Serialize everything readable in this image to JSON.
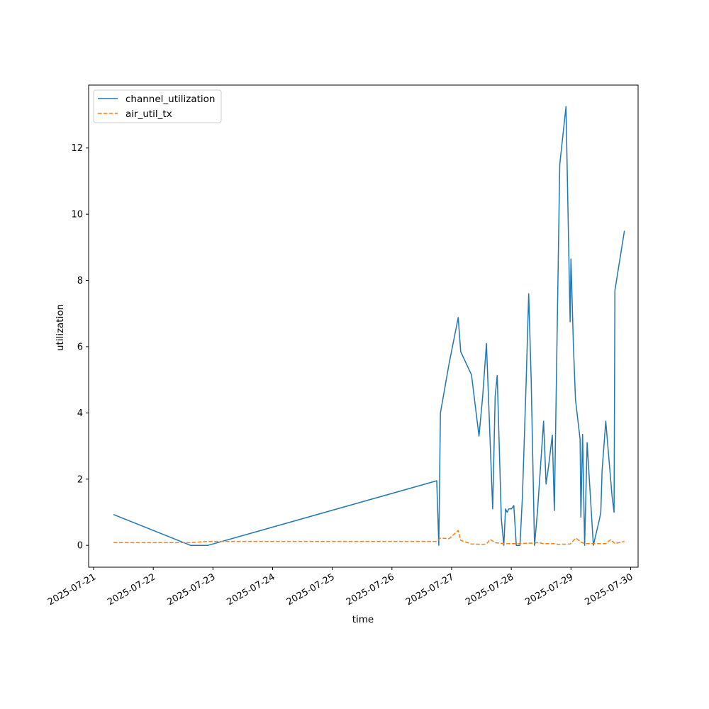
{
  "chart_data": {
    "type": "line",
    "title": "",
    "xlabel": "time",
    "ylabel": "utilization",
    "x_ticks": [
      "2025-07-21",
      "2025-07-22",
      "2025-07-23",
      "2025-07-24",
      "2025-07-25",
      "2025-07-26",
      "2025-07-27",
      "2025-07-28",
      "2025-07-29",
      "2025-07-30"
    ],
    "y_ticks": [
      0,
      2,
      4,
      6,
      8,
      10,
      12
    ],
    "xlim": [
      "2025-07-20 22:00",
      "2025-07-30 03:00"
    ],
    "ylim": [
      -0.66,
      13.9
    ],
    "grid": false,
    "legend_position": "top-left",
    "series": [
      {
        "name": "channel_utilization",
        "color": "#1f77b4",
        "style": "solid",
        "points": [
          [
            "2025-07-21 08:00",
            0.93
          ],
          [
            "2025-07-22 15:00",
            0.0
          ],
          [
            "2025-07-22 22:00",
            0.0
          ],
          [
            "2025-07-26 18:00",
            1.95
          ],
          [
            "2025-07-26 18:50",
            0.0
          ],
          [
            "2025-07-26 19:30",
            4.0
          ],
          [
            "2025-07-26 23:00",
            5.5
          ],
          [
            "2025-07-27 02:40",
            6.88
          ],
          [
            "2025-07-27 03:40",
            5.85
          ],
          [
            "2025-07-27 08:00",
            5.15
          ],
          [
            "2025-07-27 11:00",
            3.3
          ],
          [
            "2025-07-27 12:30",
            4.5
          ],
          [
            "2025-07-27 14:00",
            6.1
          ],
          [
            "2025-07-27 16:30",
            1.1
          ],
          [
            "2025-07-27 17:30",
            4.5
          ],
          [
            "2025-07-27 18:20",
            5.13
          ],
          [
            "2025-07-27 20:00",
            0.8
          ],
          [
            "2025-07-27 21:00",
            0.0
          ],
          [
            "2025-07-27 21:40",
            1.1
          ],
          [
            "2025-07-27 22:20",
            1.0
          ],
          [
            "2025-07-27 23:00",
            1.1
          ],
          [
            "2025-07-28 00:00",
            1.1
          ],
          [
            "2025-07-28 01:00",
            1.2
          ],
          [
            "2025-07-28 02:00",
            0.0
          ],
          [
            "2025-07-28 03:30",
            0.0
          ],
          [
            "2025-07-28 04:30",
            1.5
          ],
          [
            "2025-07-28 06:00",
            5.0
          ],
          [
            "2025-07-28 07:00",
            7.6
          ],
          [
            "2025-07-28 08:00",
            5.0
          ],
          [
            "2025-07-28 09:20",
            0.0
          ],
          [
            "2025-07-28 10:30",
            1.0
          ],
          [
            "2025-07-28 13:00",
            3.75
          ],
          [
            "2025-07-28 14:00",
            1.85
          ],
          [
            "2025-07-28 15:00",
            2.4
          ],
          [
            "2025-07-28 16:30",
            3.33
          ],
          [
            "2025-07-28 17:20",
            1.05
          ],
          [
            "2025-07-28 19:30",
            11.5
          ],
          [
            "2025-07-28 22:00",
            13.25
          ],
          [
            "2025-07-28 23:40",
            6.75
          ],
          [
            "2025-07-29 00:00",
            8.65
          ],
          [
            "2025-07-29 01:00",
            6.0
          ],
          [
            "2025-07-29 01:50",
            4.4
          ],
          [
            "2025-07-29 03:40",
            3.2
          ],
          [
            "2025-07-29 04:00",
            0.85
          ],
          [
            "2025-07-29 04:40",
            3.35
          ],
          [
            "2025-07-29 05:30",
            0.0
          ],
          [
            "2025-07-29 06:30",
            3.1
          ],
          [
            "2025-07-29 09:00",
            0.0
          ],
          [
            "2025-07-29 11:30",
            0.8
          ],
          [
            "2025-07-29 12:00",
            1.0
          ],
          [
            "2025-07-29 12:30",
            2.25
          ],
          [
            "2025-07-29 14:00",
            3.75
          ],
          [
            "2025-07-29 16:30",
            1.5
          ],
          [
            "2025-07-29 17:20",
            1.0
          ],
          [
            "2025-07-29 17:40",
            7.7
          ],
          [
            "2025-07-29 21:30",
            9.5
          ]
        ]
      },
      {
        "name": "air_util_tx",
        "color": "#ff7f0e",
        "style": "dashed",
        "points": [
          [
            "2025-07-21 08:00",
            0.08
          ],
          [
            "2025-07-22 15:00",
            0.08
          ],
          [
            "2025-07-22 22:00",
            0.12
          ],
          [
            "2025-07-26 18:00",
            0.12
          ],
          [
            "2025-07-26 19:30",
            0.22
          ],
          [
            "2025-07-26 23:00",
            0.2
          ],
          [
            "2025-07-27 02:40",
            0.45
          ],
          [
            "2025-07-27 03:40",
            0.15
          ],
          [
            "2025-07-27 08:00",
            0.04
          ],
          [
            "2025-07-27 12:30",
            0.03
          ],
          [
            "2025-07-27 14:00",
            0.04
          ],
          [
            "2025-07-27 15:30",
            0.18
          ],
          [
            "2025-07-27 17:30",
            0.08
          ],
          [
            "2025-07-27 21:00",
            0.05
          ],
          [
            "2025-07-28 02:00",
            0.05
          ],
          [
            "2025-07-28 05:00",
            0.06
          ],
          [
            "2025-07-28 09:20",
            0.07
          ],
          [
            "2025-07-28 11:00",
            0.08
          ],
          [
            "2025-07-28 13:00",
            0.05
          ],
          [
            "2025-07-28 17:00",
            0.05
          ],
          [
            "2025-07-28 19:00",
            0.03
          ],
          [
            "2025-07-28 23:40",
            0.04
          ],
          [
            "2025-07-29 02:00",
            0.22
          ],
          [
            "2025-07-29 04:00",
            0.1
          ],
          [
            "2025-07-29 05:30",
            0.05
          ],
          [
            "2025-07-29 12:00",
            0.05
          ],
          [
            "2025-07-29 14:00",
            0.05
          ],
          [
            "2025-07-29 16:00",
            0.17
          ],
          [
            "2025-07-29 17:40",
            0.05
          ],
          [
            "2025-07-29 21:30",
            0.12
          ]
        ]
      }
    ]
  }
}
